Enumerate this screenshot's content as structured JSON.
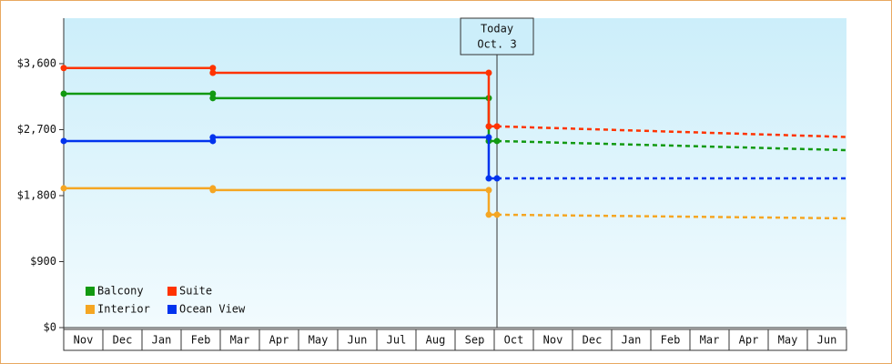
{
  "chart_data": {
    "type": "step-line",
    "categories": [
      "Nov",
      "Dec",
      "Jan",
      "Feb",
      "Mar",
      "Apr",
      "May",
      "Jun",
      "Jul",
      "Aug",
      "Sep",
      "Oct",
      "Nov",
      "Dec",
      "Jan",
      "Feb",
      "Mar",
      "Apr",
      "May",
      "Jun"
    ],
    "xlim": [
      0,
      20
    ],
    "ylim": [
      0,
      4220
    ],
    "yticks": [
      {
        "value": 0,
        "label": "$0"
      },
      {
        "value": 900,
        "label": "$900"
      },
      {
        "value": 1800,
        "label": "$1,800"
      },
      {
        "value": 2700,
        "label": "$2,700"
      },
      {
        "value": 3600,
        "label": "$3,600"
      }
    ],
    "annotation": {
      "lines": [
        "Today",
        "Oct. 3"
      ],
      "x": 11.07
    },
    "legend": "bottom-left",
    "series": [
      {
        "name": "Balcony",
        "color": "#119911",
        "x": [
          0,
          3.81,
          3.81,
          10.86,
          10.86,
          11.07
        ],
        "values": [
          3190,
          3190,
          3130,
          3130,
          2545,
          2545
        ],
        "forecast": {
          "x": [
            11.07,
            20
          ],
          "values": [
            2545,
            2420
          ]
        }
      },
      {
        "name": "Suite",
        "color": "#ff3300",
        "x": [
          0,
          3.81,
          3.81,
          10.86,
          10.86,
          11.07
        ],
        "values": [
          3540,
          3540,
          3475,
          3475,
          2745,
          2745
        ],
        "forecast": {
          "x": [
            11.07,
            20
          ],
          "values": [
            2745,
            2600
          ]
        }
      },
      {
        "name": "Interior",
        "color": "#f5a623",
        "x": [
          0,
          3.81,
          3.81,
          10.86,
          10.86,
          11.07
        ],
        "values": [
          1900,
          1900,
          1875,
          1875,
          1540,
          1540
        ],
        "forecast": {
          "x": [
            11.07,
            20
          ],
          "values": [
            1540,
            1490
          ]
        }
      },
      {
        "name": "Ocean View",
        "color": "#0033ee",
        "x": [
          0,
          3.81,
          3.81,
          10.86,
          10.86,
          11.07
        ],
        "values": [
          2545,
          2545,
          2595,
          2595,
          2035,
          2035
        ],
        "forecast": {
          "x": [
            11.07,
            20
          ],
          "values": [
            2035,
            2035
          ]
        }
      }
    ]
  }
}
